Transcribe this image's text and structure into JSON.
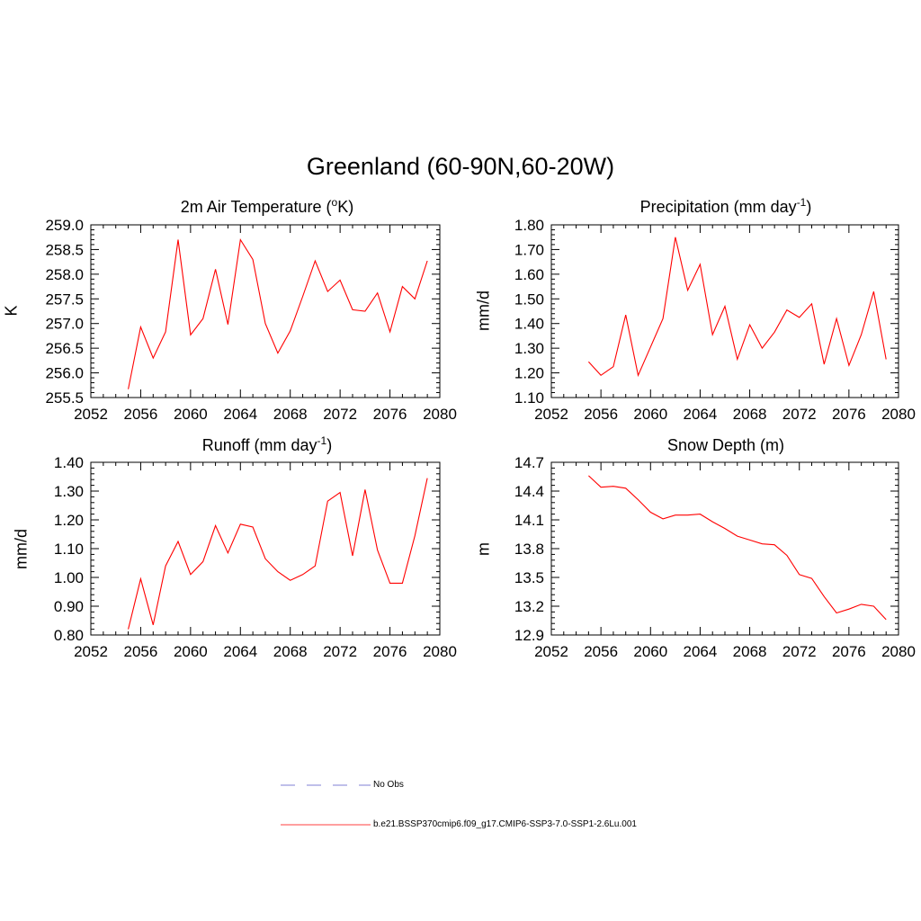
{
  "page": {
    "title": "Greenland (60-90N,60-20W)"
  },
  "legend": [
    {
      "label": "No Obs",
      "color": "#9999dd",
      "style": "dashed"
    },
    {
      "label": "b.e21.BSSP370cmip6.f09_g17.CMIP6-SSP3-7.0-SSP1-2.6Lu.001",
      "color": "#ff6666",
      "style": "solid"
    }
  ],
  "chart_data": [
    {
      "type": "line",
      "title_main": "2m Air Temperature (",
      "title_sup": "o",
      "title_end": "K)",
      "ylabel": "K",
      "xlim": [
        2052,
        2080
      ],
      "xticks": [
        2052,
        2056,
        2060,
        2064,
        2068,
        2072,
        2076,
        2080
      ],
      "ylim": [
        255.5,
        259.0
      ],
      "yticks": [
        "255.5",
        "256.0",
        "256.5",
        "257.0",
        "257.5",
        "258.0",
        "258.5",
        "259.0"
      ],
      "series": [
        {
          "color": "#ff0000",
          "x": [
            2055,
            2056,
            2057,
            2058,
            2059,
            2060,
            2061,
            2062,
            2063,
            2064,
            2065,
            2066,
            2067,
            2068,
            2069,
            2070,
            2071,
            2072,
            2073,
            2074,
            2075,
            2076,
            2077,
            2078,
            2079
          ],
          "values": [
            255.67,
            256.93,
            256.3,
            256.83,
            258.7,
            256.77,
            257.1,
            258.1,
            256.98,
            258.7,
            258.3,
            257.0,
            256.4,
            256.85,
            257.55,
            258.27,
            257.65,
            257.88,
            257.28,
            257.25,
            257.62,
            256.83,
            257.75,
            257.5,
            258.27
          ]
        }
      ]
    },
    {
      "type": "line",
      "title_main": "Precipitation (mm day",
      "title_sup": "-1",
      "title_end": ")",
      "ylabel": "mm/d",
      "xlim": [
        2052,
        2080
      ],
      "xticks": [
        2052,
        2056,
        2060,
        2064,
        2068,
        2072,
        2076,
        2080
      ],
      "ylim": [
        1.1,
        1.8
      ],
      "yticks": [
        "1.10",
        "1.20",
        "1.30",
        "1.40",
        "1.50",
        "1.60",
        "1.70",
        "1.80"
      ],
      "series": [
        {
          "color": "#ff0000",
          "x": [
            2055,
            2056,
            2057,
            2058,
            2059,
            2060,
            2061,
            2062,
            2063,
            2064,
            2065,
            2066,
            2067,
            2068,
            2069,
            2070,
            2071,
            2072,
            2073,
            2074,
            2075,
            2076,
            2077,
            2078,
            2079
          ],
          "values": [
            1.245,
            1.19,
            1.225,
            1.435,
            1.19,
            1.305,
            1.42,
            1.75,
            1.535,
            1.64,
            1.355,
            1.47,
            1.255,
            1.395,
            1.3,
            1.365,
            1.455,
            1.425,
            1.48,
            1.235,
            1.42,
            1.23,
            1.355,
            1.53,
            1.255
          ]
        }
      ]
    },
    {
      "type": "line",
      "title_main": "Runoff (mm day",
      "title_sup": "-1",
      "title_end": ")",
      "ylabel": "mm/d",
      "xlim": [
        2052,
        2080
      ],
      "xticks": [
        2052,
        2056,
        2060,
        2064,
        2068,
        2072,
        2076,
        2080
      ],
      "ylim": [
        0.8,
        1.4
      ],
      "yticks": [
        "0.80",
        "0.90",
        "1.00",
        "1.10",
        "1.20",
        "1.30",
        "1.40"
      ],
      "series": [
        {
          "color": "#ff0000",
          "x": [
            2055,
            2056,
            2057,
            2058,
            2059,
            2060,
            2061,
            2062,
            2063,
            2064,
            2065,
            2066,
            2067,
            2068,
            2069,
            2070,
            2071,
            2072,
            2073,
            2074,
            2075,
            2076,
            2077,
            2078,
            2079
          ],
          "values": [
            0.82,
            0.995,
            0.835,
            1.04,
            1.125,
            1.01,
            1.055,
            1.18,
            1.085,
            1.185,
            1.175,
            1.065,
            1.02,
            0.99,
            1.01,
            1.04,
            1.265,
            1.295,
            1.075,
            1.305,
            1.095,
            0.98,
            0.98,
            1.145,
            1.345
          ]
        }
      ]
    },
    {
      "type": "line",
      "title_main": "Snow Depth (m)",
      "title_sup": "",
      "title_end": "",
      "ylabel": "m",
      "xlim": [
        2052,
        2080
      ],
      "xticks": [
        2052,
        2056,
        2060,
        2064,
        2068,
        2072,
        2076,
        2080
      ],
      "ylim": [
        12.9,
        14.7
      ],
      "yticks": [
        "12.9",
        "13.2",
        "13.5",
        "13.8",
        "14.1",
        "14.4",
        "14.7"
      ],
      "series": [
        {
          "color": "#ff0000",
          "x": [
            2055,
            2056,
            2057,
            2058,
            2059,
            2060,
            2061,
            2062,
            2063,
            2064,
            2065,
            2066,
            2067,
            2068,
            2069,
            2070,
            2071,
            2072,
            2073,
            2074,
            2075,
            2076,
            2077,
            2078,
            2079
          ],
          "values": [
            14.56,
            14.44,
            14.45,
            14.43,
            14.31,
            14.18,
            14.11,
            14.15,
            14.15,
            14.16,
            14.08,
            14.01,
            13.93,
            13.89,
            13.85,
            13.84,
            13.73,
            13.53,
            13.49,
            13.3,
            13.13,
            13.17,
            13.22,
            13.2,
            13.06
          ]
        }
      ]
    }
  ]
}
